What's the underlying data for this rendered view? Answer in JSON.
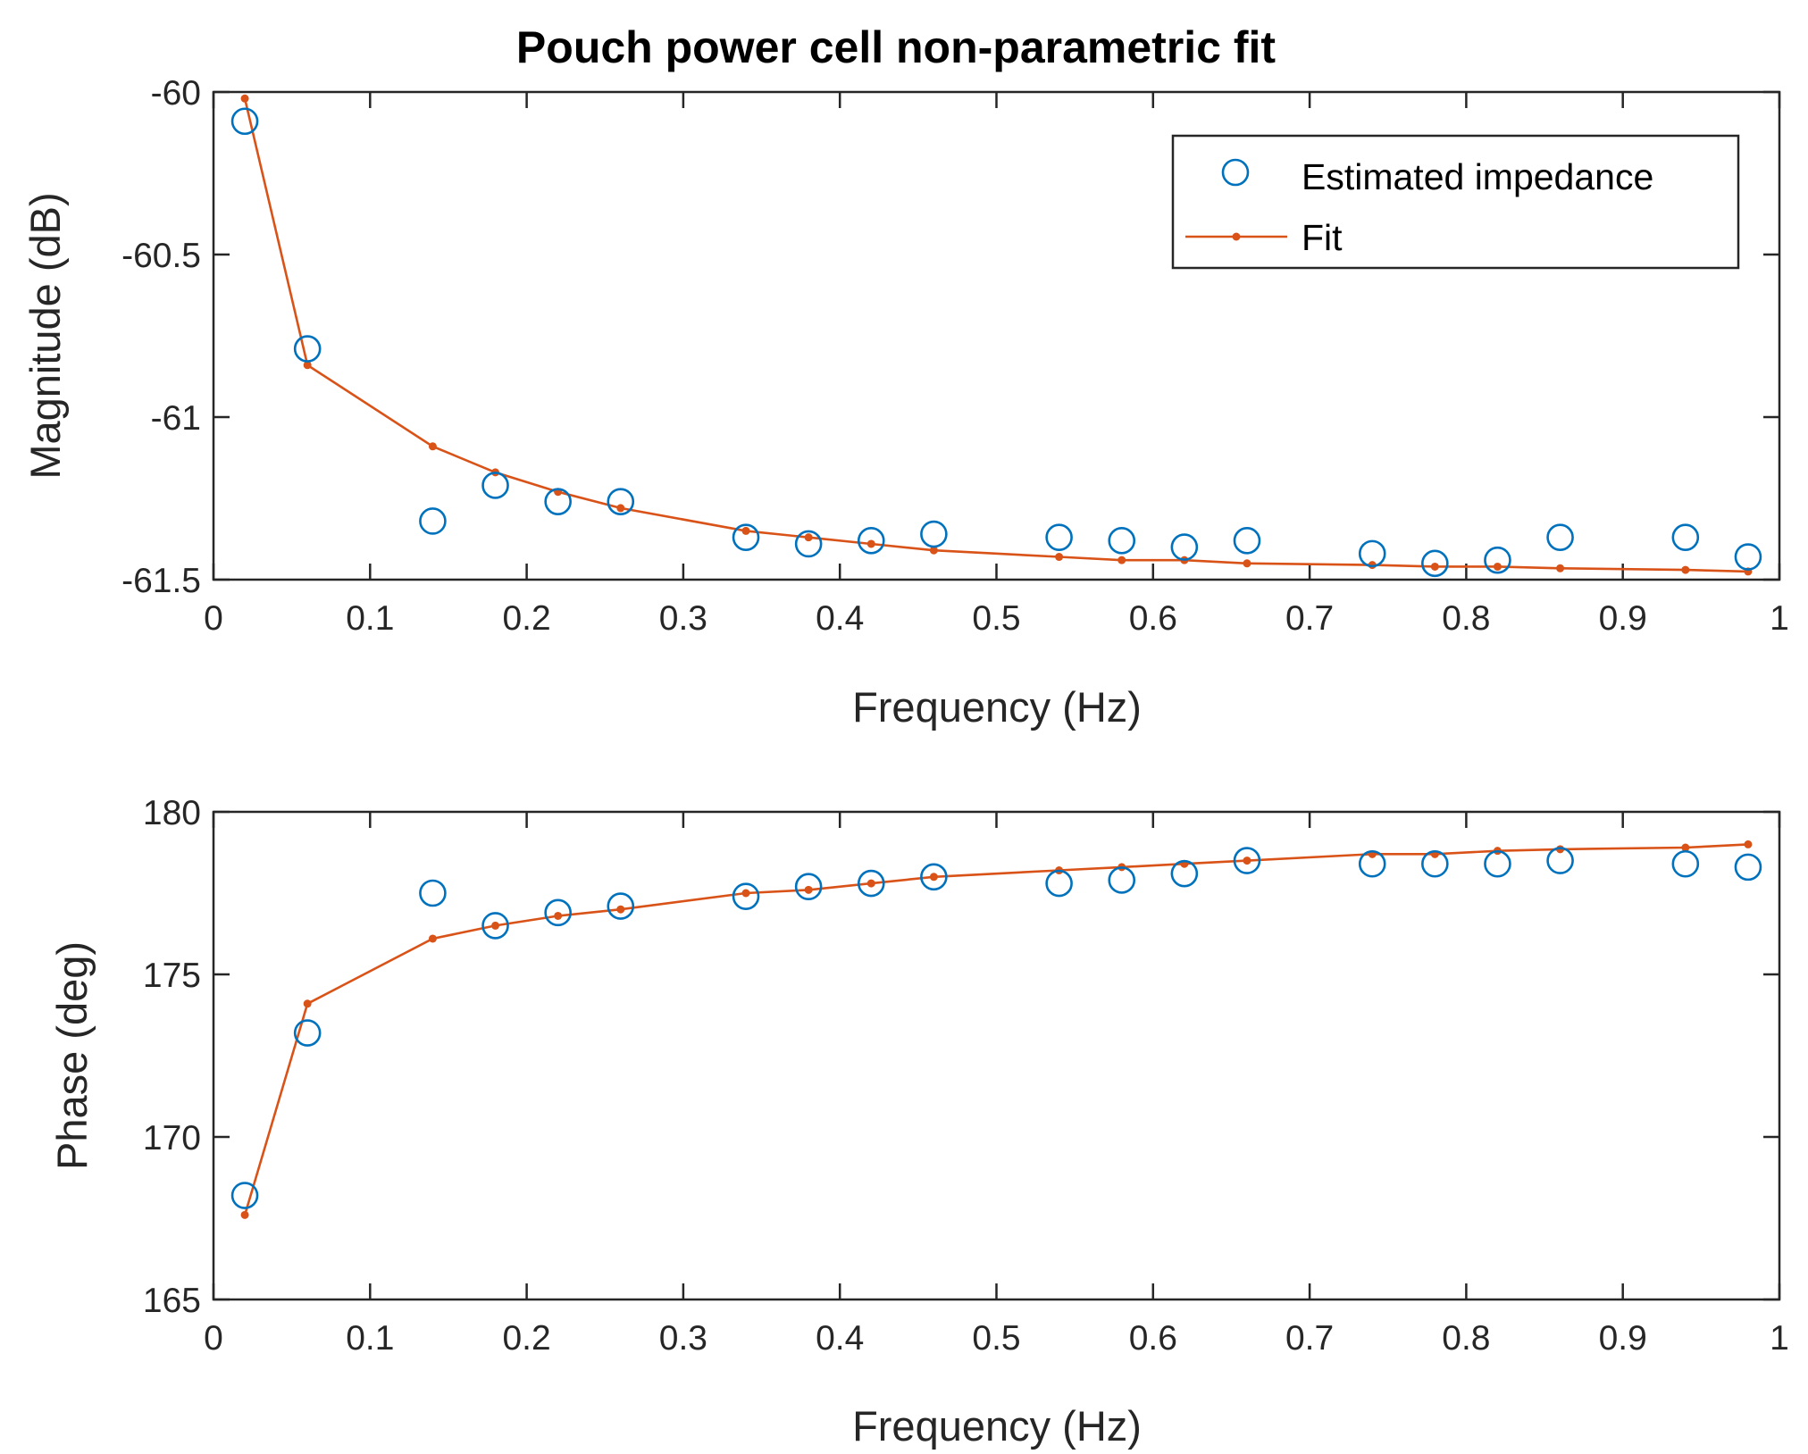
{
  "colors": {
    "estimated": "#0072BD",
    "fit": "#D95319",
    "axis": "#262626"
  },
  "chart_data": [
    {
      "type": "scatter",
      "title": "Pouch power cell non-parametric fit",
      "xlabel": "Frequency (Hz)",
      "ylabel": "Magnitude (dB)",
      "xlim": [
        0,
        1
      ],
      "ylim": [
        -61.5,
        -60
      ],
      "xticks": [
        0,
        0.1,
        0.2,
        0.3,
        0.4,
        0.5,
        0.6,
        0.7,
        0.8,
        0.9,
        1
      ],
      "xtick_labels": [
        "0",
        "0.1",
        "0.2",
        "0.3",
        "0.4",
        "0.5",
        "0.6",
        "0.7",
        "0.8",
        "0.9",
        "1"
      ],
      "yticks": [
        -61.5,
        -61,
        -60.5,
        -60
      ],
      "ytick_labels": [
        "-61.5",
        "-61",
        "-60.5",
        "-60"
      ],
      "legend": {
        "position": "top-right",
        "entries": [
          "Estimated impedance",
          "Fit"
        ]
      },
      "series": [
        {
          "name": "Estimated impedance",
          "style": "circle",
          "x": [
            0.02,
            0.06,
            0.14,
            0.18,
            0.22,
            0.26,
            0.34,
            0.38,
            0.42,
            0.46,
            0.54,
            0.58,
            0.62,
            0.66,
            0.74,
            0.78,
            0.82,
            0.86,
            0.94,
            0.98
          ],
          "y": [
            -60.09,
            -60.79,
            -61.32,
            -61.21,
            -61.26,
            -61.26,
            -61.37,
            -61.39,
            -61.38,
            -61.36,
            -61.37,
            -61.38,
            -61.4,
            -61.38,
            -61.42,
            -61.45,
            -61.44,
            -61.37,
            -61.37,
            -61.43
          ]
        },
        {
          "name": "Fit",
          "style": "line-dot",
          "x": [
            0.02,
            0.06,
            0.14,
            0.18,
            0.22,
            0.26,
            0.34,
            0.38,
            0.42,
            0.46,
            0.54,
            0.58,
            0.62,
            0.66,
            0.74,
            0.78,
            0.82,
            0.86,
            0.94,
            0.98
          ],
          "y": [
            -60.02,
            -60.84,
            -61.09,
            -61.17,
            -61.23,
            -61.28,
            -61.35,
            -61.37,
            -61.39,
            -61.41,
            -61.43,
            -61.44,
            -61.44,
            -61.45,
            -61.455,
            -61.46,
            -61.46,
            -61.465,
            -61.47,
            -61.475
          ]
        }
      ]
    },
    {
      "type": "scatter",
      "title": "",
      "xlabel": "Frequency (Hz)",
      "ylabel": "Phase (deg)",
      "xlim": [
        0,
        1
      ],
      "ylim": [
        165,
        180
      ],
      "xticks": [
        0,
        0.1,
        0.2,
        0.3,
        0.4,
        0.5,
        0.6,
        0.7,
        0.8,
        0.9,
        1
      ],
      "xtick_labels": [
        "0",
        "0.1",
        "0.2",
        "0.3",
        "0.4",
        "0.5",
        "0.6",
        "0.7",
        "0.8",
        "0.9",
        "1"
      ],
      "yticks": [
        165,
        170,
        175,
        180
      ],
      "ytick_labels": [
        "165",
        "170",
        "175",
        "180"
      ],
      "series": [
        {
          "name": "Estimated impedance",
          "style": "circle",
          "x": [
            0.02,
            0.06,
            0.14,
            0.18,
            0.22,
            0.26,
            0.34,
            0.38,
            0.42,
            0.46,
            0.54,
            0.58,
            0.62,
            0.66,
            0.74,
            0.78,
            0.82,
            0.86,
            0.94,
            0.98
          ],
          "y": [
            168.2,
            173.2,
            177.5,
            176.5,
            176.9,
            177.1,
            177.4,
            177.7,
            177.8,
            178.0,
            177.8,
            177.9,
            178.1,
            178.5,
            178.4,
            178.4,
            178.4,
            178.5,
            178.4,
            178.3
          ]
        },
        {
          "name": "Fit",
          "style": "line-dot",
          "x": [
            0.02,
            0.06,
            0.14,
            0.18,
            0.22,
            0.26,
            0.34,
            0.38,
            0.42,
            0.46,
            0.54,
            0.58,
            0.62,
            0.66,
            0.74,
            0.78,
            0.82,
            0.86,
            0.94,
            0.98
          ],
          "y": [
            167.6,
            174.1,
            176.1,
            176.5,
            176.8,
            177.0,
            177.5,
            177.6,
            177.8,
            178.0,
            178.2,
            178.3,
            178.4,
            178.5,
            178.7,
            178.7,
            178.8,
            178.85,
            178.9,
            179.0
          ]
        }
      ]
    }
  ]
}
